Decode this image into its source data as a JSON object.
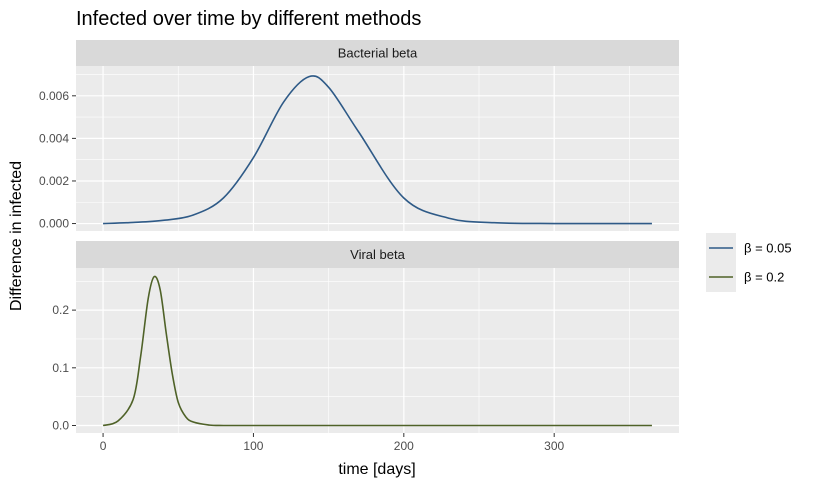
{
  "title": "Infected over time by different methods",
  "colors": {
    "panel_bg": "#ebebeb",
    "strip_bg": "#d9d9d9",
    "grid": "#ffffff",
    "bacterial": "#2e5a87",
    "viral": "#4f6228"
  },
  "legend": {
    "items": [
      {
        "label": "β = 0.05",
        "color": "#2e5a87"
      },
      {
        "label": "β = 0.2",
        "color": "#4f6228"
      }
    ]
  },
  "chart_data": {
    "type": "line",
    "title": "Infected over time by different methods",
    "xlabel": "time [days]",
    "ylabel": "Difference in infected",
    "xlim": [
      -18,
      383
    ],
    "x_ticks": [
      "0",
      "100",
      "200",
      "300"
    ],
    "legend_position": "right",
    "grid": true,
    "panels": [
      {
        "name": "Bacterial beta",
        "ylim": [
          -0.00035,
          0.0074
        ],
        "y_ticks": [
          "0.000",
          "0.002",
          "0.004",
          "0.006"
        ],
        "series": [
          {
            "name": "β = 0.05",
            "color": "#2e5a87",
            "x": [
              0,
              20,
              40,
              60,
              80,
              100,
              120,
              137,
              150,
              170,
              200,
              230,
              260,
              300,
              330,
              365
            ],
            "y": [
              0.0,
              5e-05,
              0.00015,
              0.0004,
              0.0012,
              0.0031,
              0.0057,
              0.0069,
              0.0064,
              0.0043,
              0.0012,
              0.00025,
              4e-05,
              0.0,
              0.0,
              0.0
            ]
          }
        ]
      },
      {
        "name": "Viral beta",
        "ylim": [
          -0.013,
          0.273
        ],
        "y_ticks": [
          "0.0",
          "0.1",
          "0.2"
        ],
        "series": [
          {
            "name": "β = 0.2",
            "color": "#4f6228",
            "x": [
              0,
              10,
              20,
              25,
              30,
              34,
              38,
              42,
              46,
              50,
              55,
              60,
              70,
              80,
              120,
              200,
              300,
              365
            ],
            "y": [
              0.0,
              0.008,
              0.045,
              0.12,
              0.22,
              0.258,
              0.235,
              0.16,
              0.09,
              0.04,
              0.015,
              0.006,
              0.001,
              0.0,
              0.0,
              0.0,
              0.0,
              0.0
            ]
          }
        ]
      }
    ]
  }
}
